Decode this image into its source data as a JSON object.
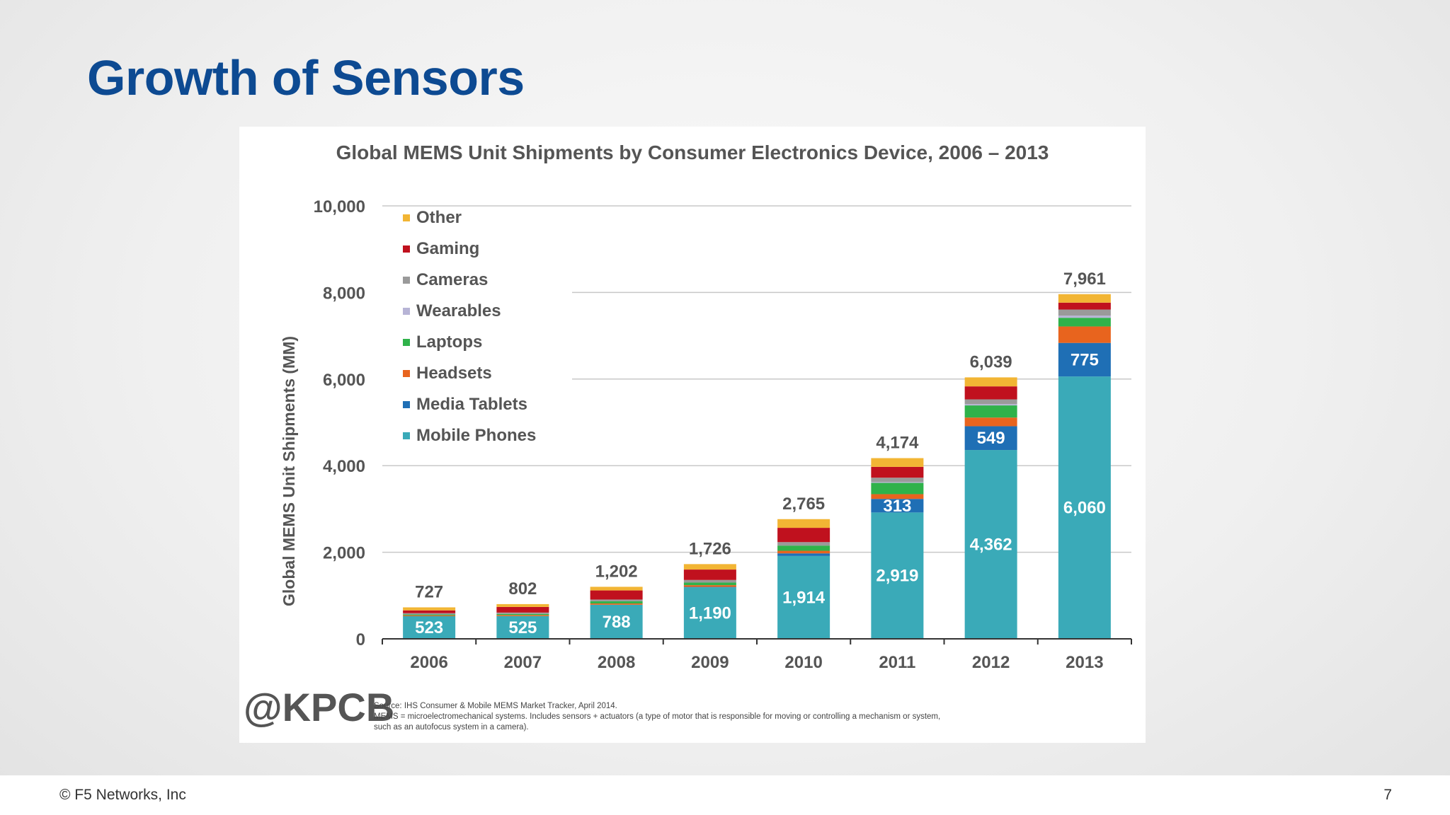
{
  "slide": {
    "title": "Growth of Sensors",
    "footer": "© F5 Networks, Inc",
    "page_number": "7"
  },
  "chart_data": {
    "type": "bar",
    "stacked": true,
    "title": "Global MEMS Unit Shipments by Consumer Electronics Device, 2006 – 2013",
    "ylabel": "Global MEMS Unit Shipments (MM)",
    "xlabel": "",
    "ylim": [
      0,
      10000
    ],
    "yticks": [
      "0",
      "2,000",
      "4,000",
      "6,000",
      "8,000",
      "10,000"
    ],
    "grid": true,
    "legend_position": "top-left",
    "categories": [
      "2006",
      "2007",
      "2008",
      "2009",
      "2010",
      "2011",
      "2012",
      "2013"
    ],
    "totals": [
      727,
      802,
      1202,
      1726,
      2765,
      4174,
      6039,
      7961
    ],
    "total_labels": [
      "727",
      "802",
      "1,202",
      "1,726",
      "2,765",
      "4,174",
      "6,039",
      "7,961"
    ],
    "series": [
      {
        "name": "Mobile Phones",
        "color": "#3aaab8",
        "values": [
          523,
          525,
          788,
          1190,
          1914,
          2919,
          4362,
          6060
        ],
        "labels": [
          "523",
          "525",
          "788",
          "1,190",
          "1,914",
          "2,919",
          "4,362",
          "6,060"
        ]
      },
      {
        "name": "Media Tablets",
        "color": "#1f6fb5",
        "values": [
          0,
          0,
          0,
          10,
          60,
          313,
          549,
          775
        ],
        "labels": [
          "",
          "",
          "",
          "",
          "",
          "313",
          "549",
          "775"
        ]
      },
      {
        "name": "Headsets",
        "color": "#e8641e",
        "values": [
          20,
          25,
          30,
          40,
          60,
          110,
          200,
          380
        ]
      },
      {
        "name": "Laptops",
        "color": "#2fb24a",
        "values": [
          20,
          25,
          50,
          60,
          120,
          260,
          280,
          200
        ]
      },
      {
        "name": "Wearables",
        "color": "#b7b4d6",
        "values": [
          0,
          0,
          0,
          0,
          0,
          20,
          30,
          50
        ]
      },
      {
        "name": "Cameras",
        "color": "#9a9a9a",
        "values": [
          30,
          32,
          40,
          60,
          80,
          100,
          110,
          140
        ]
      },
      {
        "name": "Gaming",
        "color": "#c0111e",
        "values": [
          64,
          130,
          210,
          240,
          330,
          250,
          300,
          160
        ]
      },
      {
        "name": "Other",
        "color": "#f2b534",
        "values": [
          70,
          65,
          84,
          126,
          201,
          202,
          208,
          196
        ]
      }
    ]
  },
  "source": {
    "logo": "@KPCB",
    "line1": "Source: IHS Consumer & Mobile MEMS Market Tracker, April 2014.",
    "line2": "MEMS = microelectromechanical systems. Includes sensors + actuators (a type of motor that is responsible for moving or controlling a mechanism or system,",
    "line3": "such as an autofocus system in a camera)."
  }
}
